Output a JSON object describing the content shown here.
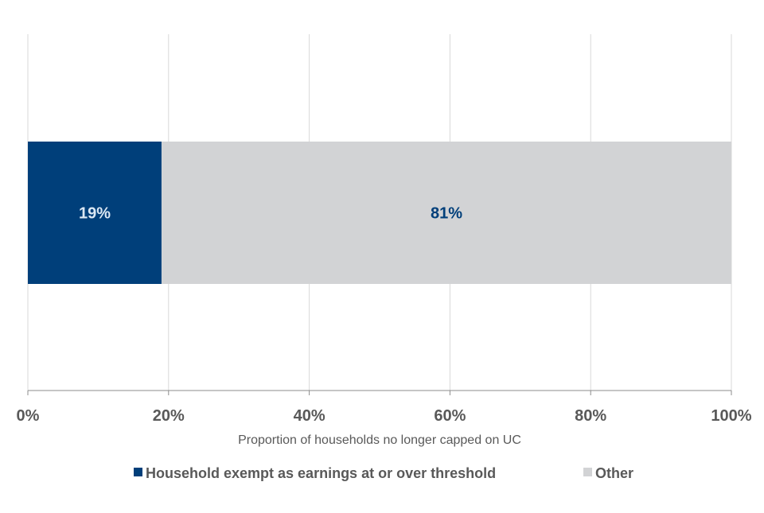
{
  "chart_data": {
    "type": "bar",
    "orientation": "horizontal",
    "stacked": true,
    "title": "",
    "xlabel": "Proportion of households no longer capped on UC",
    "ylabel": "",
    "xlim": [
      0,
      100
    ],
    "x_ticks": [
      "0%",
      "20%",
      "40%",
      "60%",
      "80%",
      "100%"
    ],
    "grid": true,
    "legend_position": "bottom",
    "categories": [
      ""
    ],
    "series": [
      {
        "name": "Household exempt as earnings at or over threshold",
        "values": [
          19
        ],
        "label": "19%",
        "color": "#003f7a",
        "label_color": "#dbe7f3"
      },
      {
        "name": "Other",
        "values": [
          81
        ],
        "label": "81%",
        "color": "#d2d3d5",
        "label_color": "#003f7a"
      }
    ]
  },
  "colors": {
    "grid": "#d9d9d9",
    "axis": "#8c8c8c",
    "text": "#595959"
  }
}
